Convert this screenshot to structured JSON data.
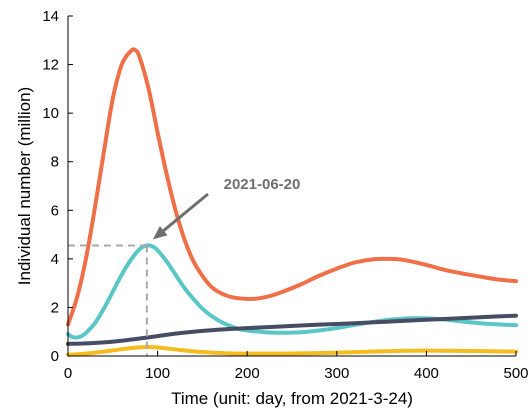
{
  "chart_data": {
    "type": "line",
    "title": "",
    "xlabel": "Time (unit: day, from 2021-3-24)",
    "ylabel": "Individual number (million)",
    "xlim": [
      0,
      500
    ],
    "ylim": [
      0,
      14
    ],
    "xticks": [
      0,
      100,
      200,
      300,
      400,
      500
    ],
    "yticks": [
      0,
      2,
      4,
      6,
      8,
      10,
      12,
      14
    ],
    "grid": false,
    "legend": "none",
    "series": [
      {
        "color": "#ef7048",
        "x": [
          0,
          10,
          20,
          30,
          40,
          50,
          60,
          70,
          75,
          80,
          90,
          100,
          110,
          120,
          130,
          140,
          150,
          160,
          170,
          180,
          190,
          200,
          210,
          220,
          230,
          240,
          260,
          280,
          300,
          320,
          340,
          360,
          370,
          380,
          400,
          420,
          440,
          460,
          480,
          500
        ],
        "y": [
          1.3,
          2.4,
          4.0,
          6.1,
          8.4,
          10.6,
          12.0,
          12.55,
          12.6,
          12.3,
          11.0,
          9.2,
          7.5,
          6.0,
          4.8,
          3.9,
          3.3,
          2.85,
          2.6,
          2.45,
          2.38,
          2.35,
          2.36,
          2.42,
          2.52,
          2.65,
          2.95,
          3.3,
          3.6,
          3.85,
          3.98,
          4.0,
          3.98,
          3.92,
          3.75,
          3.55,
          3.4,
          3.27,
          3.15,
          3.08
        ]
      },
      {
        "color": "#5bc6c6",
        "x": [
          0,
          5,
          10,
          15,
          20,
          30,
          40,
          50,
          60,
          70,
          80,
          88,
          95,
          100,
          110,
          120,
          130,
          140,
          150,
          160,
          170,
          180,
          190,
          200,
          220,
          240,
          260,
          280,
          300,
          320,
          340,
          360,
          380,
          400,
          420,
          440,
          460,
          480,
          500
        ],
        "y": [
          0.9,
          0.78,
          0.76,
          0.82,
          0.95,
          1.35,
          1.95,
          2.65,
          3.35,
          3.95,
          4.4,
          4.55,
          4.5,
          4.35,
          3.9,
          3.35,
          2.8,
          2.35,
          1.95,
          1.65,
          1.42,
          1.25,
          1.12,
          1.05,
          0.98,
          0.96,
          0.98,
          1.05,
          1.15,
          1.28,
          1.4,
          1.5,
          1.55,
          1.55,
          1.5,
          1.42,
          1.35,
          1.3,
          1.27
        ]
      },
      {
        "color": "#464c62",
        "x": [
          0,
          20,
          40,
          60,
          80,
          100,
          120,
          140,
          160,
          180,
          200,
          240,
          280,
          320,
          360,
          400,
          440,
          480,
          500
        ],
        "y": [
          0.5,
          0.52,
          0.56,
          0.63,
          0.72,
          0.82,
          0.92,
          1.0,
          1.06,
          1.11,
          1.15,
          1.22,
          1.29,
          1.35,
          1.42,
          1.49,
          1.56,
          1.63,
          1.66
        ]
      },
      {
        "color": "#f5bc1e",
        "x": [
          0,
          20,
          40,
          60,
          80,
          90,
          100,
          120,
          140,
          160,
          180,
          200,
          240,
          280,
          320,
          360,
          400,
          440,
          480,
          500
        ],
        "y": [
          0.05,
          0.1,
          0.18,
          0.28,
          0.36,
          0.37,
          0.35,
          0.27,
          0.19,
          0.14,
          0.11,
          0.1,
          0.1,
          0.12,
          0.16,
          0.2,
          0.22,
          0.21,
          0.19,
          0.18
        ]
      }
    ],
    "annotation": {
      "text": "2021-06-20",
      "x": 88,
      "y": 4.55
    }
  }
}
